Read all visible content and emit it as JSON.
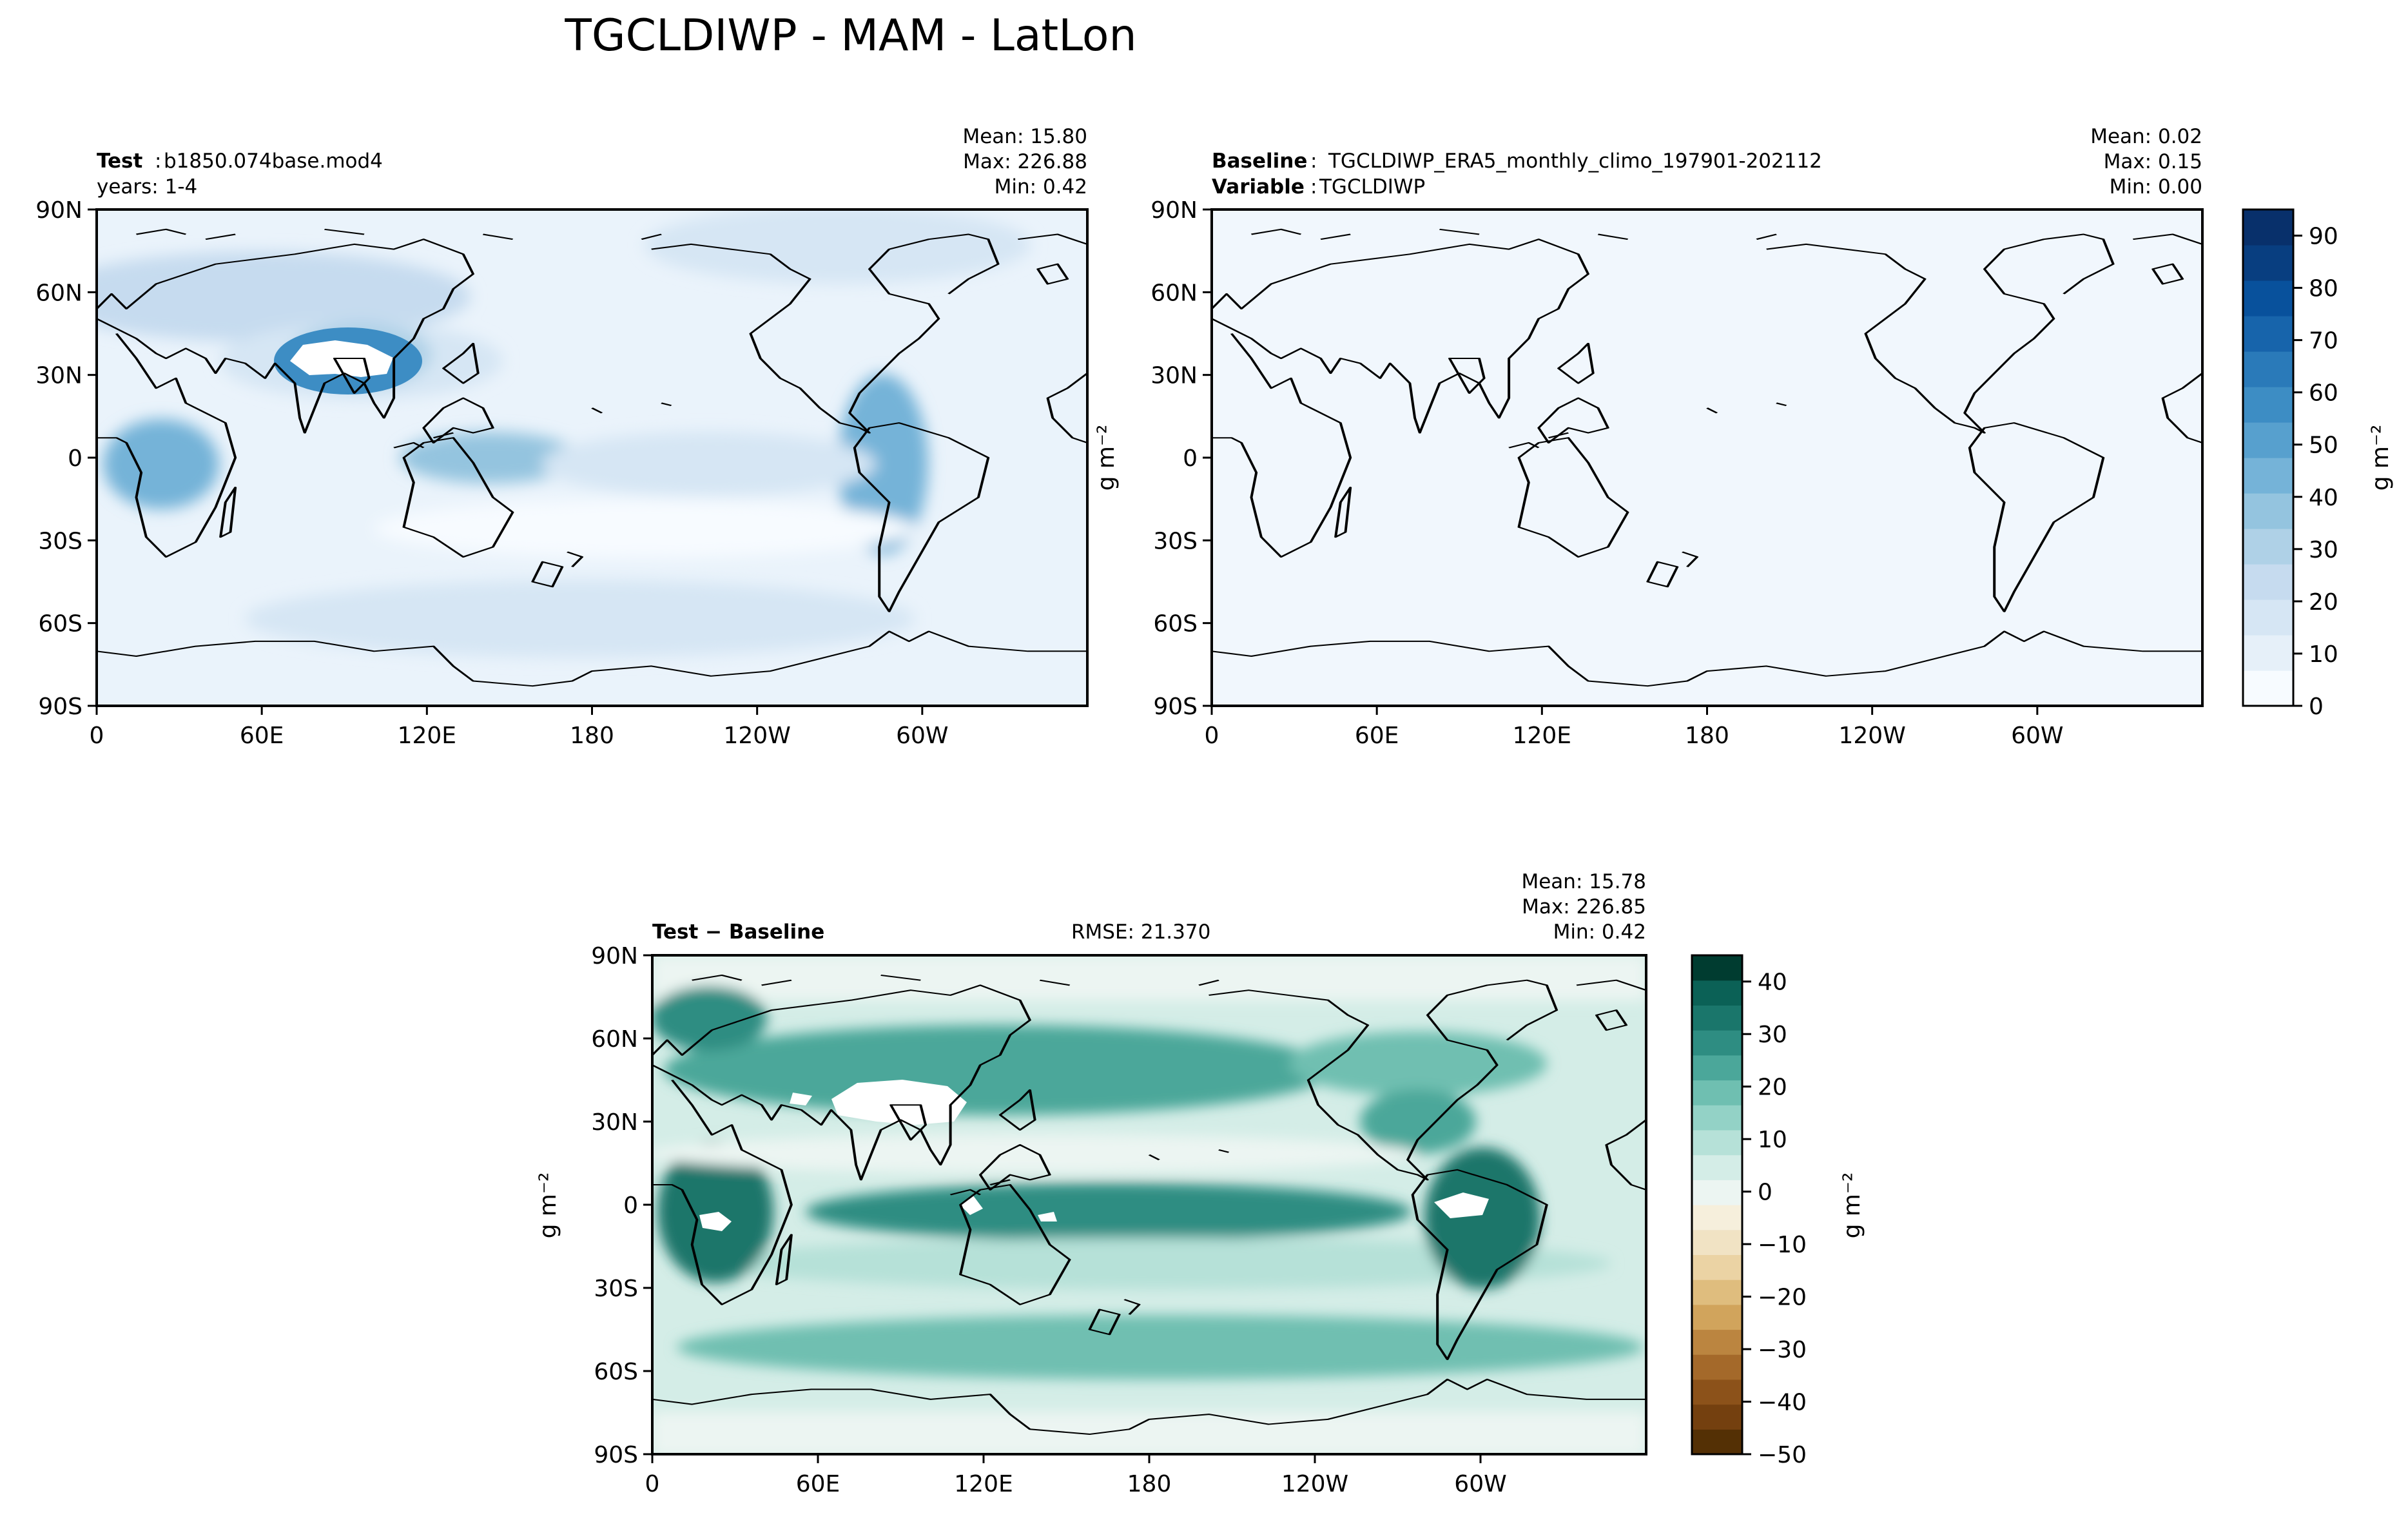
{
  "figure": {
    "title": "TGCLDIWP - MAM - LatLon"
  },
  "chart_data": [
    {
      "type": "heatmap",
      "id": "test",
      "title_bold": "Test",
      "title_text": "b1850.074base.mod4",
      "subtitle": "years: 1-4",
      "stats": {
        "mean": "Mean: 15.80",
        "max": "Max: 226.88",
        "min": "Min:  0.42"
      },
      "x_ticks": [
        "0",
        "60E",
        "120E",
        "180",
        "120W",
        "60W"
      ],
      "y_ticks": [
        "90N",
        "60N",
        "30N",
        "0",
        "30S",
        "60S",
        "90S"
      ],
      "xlim": [
        0,
        360
      ],
      "ylim": [
        -90,
        90
      ],
      "colormap": "Blues"
    },
    {
      "type": "heatmap",
      "id": "baseline",
      "title_bold": "Baseline",
      "title_text": "TGCLDIWP_ERA5_monthly_climo_197901-202112",
      "var_bold": "Variable",
      "var_text": "TGCLDIWP",
      "stats": {
        "mean": "Mean:  0.02",
        "max": "Max:  0.15",
        "min": "Min:  0.00"
      },
      "x_ticks": [
        "0",
        "60E",
        "120E",
        "180",
        "120W",
        "60W"
      ],
      "y_ticks": [
        "90N",
        "60N",
        "30N",
        "0",
        "30S",
        "60S",
        "90S"
      ],
      "xlim": [
        0,
        360
      ],
      "ylim": [
        -90,
        90
      ],
      "colorbar": {
        "ticks": [
          "90",
          "80",
          "70",
          "60",
          "50",
          "40",
          "30",
          "20",
          "10",
          "0"
        ],
        "label": "g m⁻²",
        "range": [
          0,
          95
        ]
      },
      "ylabel": "g m⁻²",
      "colormap": "Blues"
    },
    {
      "type": "heatmap",
      "id": "difference",
      "title_bold": "Test − Baseline",
      "rmse": "RMSE: 21.370",
      "stats": {
        "mean": "Mean: 15.78",
        "max": "Max: 226.85",
        "min": "Min:  0.42"
      },
      "x_ticks": [
        "0",
        "60E",
        "120E",
        "180",
        "120W",
        "60W"
      ],
      "y_ticks": [
        "90N",
        "60N",
        "30N",
        "0",
        "30S",
        "60S",
        "90S"
      ],
      "xlim": [
        0,
        360
      ],
      "ylim": [
        -90,
        90
      ],
      "ylabel": "g m⁻²",
      "colorbar": {
        "ticks": [
          "40",
          "30",
          "20",
          "10",
          "0",
          "−10",
          "−20",
          "−30",
          "−40",
          "−50"
        ],
        "label": "g m⁻²",
        "range": [
          -50,
          45
        ]
      },
      "colormap": "BrBG"
    }
  ],
  "colors": {
    "blues": [
      "#f7fbff",
      "#e6f0f9",
      "#d6e6f4",
      "#c6dbef",
      "#afd1e7",
      "#94c4df",
      "#75b3d8",
      "#57a0ce",
      "#3d8dc4",
      "#2a7ab9",
      "#1764ab",
      "#08519c",
      "#083e80",
      "#08306b"
    ],
    "browns": [
      "#f6efdc",
      "#f1e3c4",
      "#ebd3a4",
      "#dfbd7e",
      "#d1a45c",
      "#bb8540",
      "#a4692a",
      "#8c521a",
      "#74400f",
      "#543005"
    ],
    "teals": [
      "#ecf5f2",
      "#d4ede7",
      "#b6e1d8",
      "#93d2c6",
      "#6fbfb1",
      "#4ba79a",
      "#2e8d82",
      "#1a766b",
      "#0b6156",
      "#003c30"
    ],
    "land_hole": "#ffffff"
  }
}
